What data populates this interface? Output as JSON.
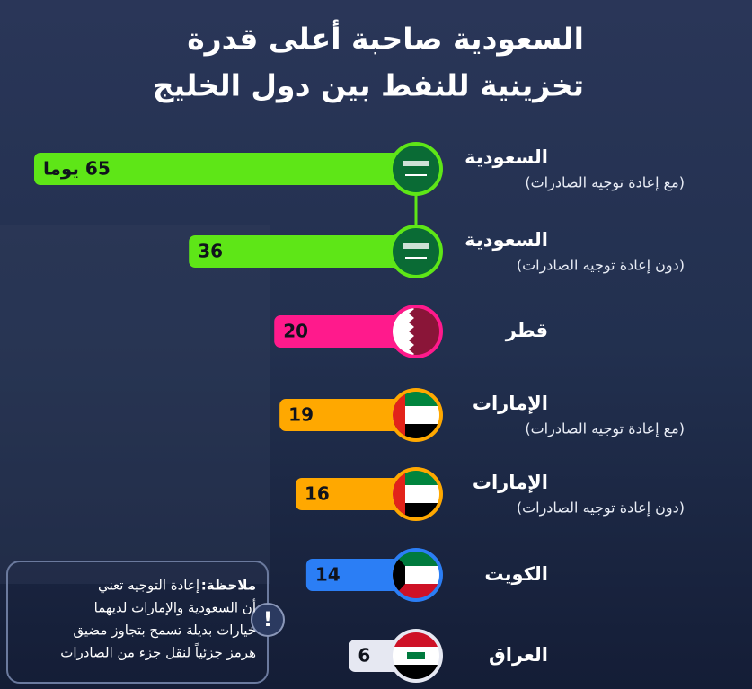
{
  "chart_data": {
    "type": "bar",
    "orientation": "horizontal",
    "title": [
      "السعودية صاحبة أعلى قدرة",
      "تخزينية للنفط بين دول الخليج"
    ],
    "categories": [
      "السعودية",
      "السعودية",
      "قطر",
      "الإمارات",
      "الإمارات",
      "الكويت",
      "العراق"
    ],
    "category_notes": [
      "(مع إعادة توجيه الصادرات)",
      "(دون إعادة توجيه الصادرات)",
      null,
      "(مع إعادة توجيه الصادرات)",
      "(دون إعادة توجيه الصادرات)",
      null,
      null
    ],
    "values": [
      65,
      36,
      20,
      19,
      16,
      14,
      6
    ],
    "value_labels": [
      "65 يوما",
      "36",
      "20",
      "19",
      "16",
      "14",
      "6"
    ],
    "colors": [
      "#5ee617",
      "#5ee617",
      "#ff1a8c",
      "#ffa800",
      "#ffa800",
      "#2b7ef5",
      "#e6e8f2"
    ],
    "note": {
      "heading": "ملاحظة:",
      "lines": [
        "إعادة التوجيه تعني",
        "أن السعودية والإمارات لديهما",
        "خيارات بديلة تسمح بتجاوز مضيق",
        "هرمز جزئياً لنقل جزء من الصادرات"
      ]
    }
  }
}
